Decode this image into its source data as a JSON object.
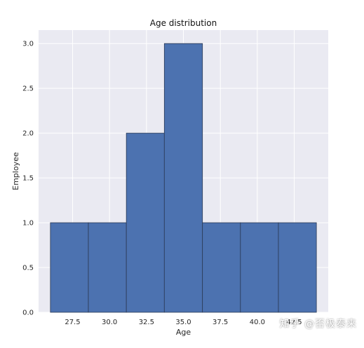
{
  "watermark": "知乎 @否极泰来",
  "colors": {
    "background": "#eaeaf2",
    "grid": "#ffffff",
    "bar_fill": "#4c72b0",
    "bar_edge": "#2b3a55"
  },
  "chart_data": {
    "type": "bar",
    "title": "Age distribution",
    "xlabel": "Age",
    "ylabel": "Employee",
    "bins": [
      {
        "start": 26.0,
        "end": 28.57,
        "count": 1
      },
      {
        "start": 28.57,
        "end": 31.14,
        "count": 1
      },
      {
        "start": 31.14,
        "end": 33.71,
        "count": 2
      },
      {
        "start": 33.71,
        "end": 36.29,
        "count": 3
      },
      {
        "start": 36.29,
        "end": 38.86,
        "count": 1
      },
      {
        "start": 38.86,
        "end": 41.43,
        "count": 1
      },
      {
        "start": 41.43,
        "end": 44.0,
        "count": 1
      }
    ],
    "xlim": [
      25.2,
      44.8
    ],
    "ylim": [
      0,
      3.15
    ],
    "xticks": [
      27.5,
      30.0,
      32.5,
      35.0,
      37.5,
      40.0,
      42.5
    ],
    "xtick_labels": [
      "27.5",
      "30.0",
      "32.5",
      "35.0",
      "37.5",
      "40.0",
      "42.5"
    ],
    "yticks": [
      0.0,
      0.5,
      1.0,
      1.5,
      2.0,
      2.5,
      3.0
    ],
    "ytick_labels": [
      "0.0",
      "0.5",
      "1.0",
      "1.5",
      "2.0",
      "2.5",
      "3.0"
    ],
    "grid": true,
    "legend": "none"
  }
}
